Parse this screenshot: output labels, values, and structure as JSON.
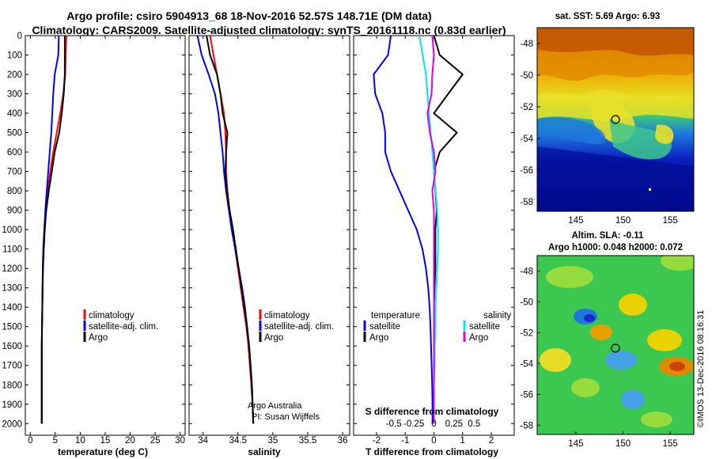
{
  "header": {
    "line1": "Argo profile: csiro 5904913_68 18-Nov-2016 52.57S 148.71E (DM data)",
    "line2": "Climatology: CARS2009. Satellite-adjusted climatology: synTS_20161118.nc (0.83d earlier)"
  },
  "colors": {
    "climatology": "#ff0000",
    "satellite": "#0000ff",
    "argo": "#000000",
    "satellite_salinity": "#00e5ee",
    "argo_salinity": "#e000e0"
  },
  "depth_ticks": [
    "0",
    "100",
    "200",
    "300",
    "400",
    "500",
    "600",
    "700",
    "800",
    "900",
    "1000",
    "1100",
    "1200",
    "1300",
    "1400",
    "1500",
    "1600",
    "1700",
    "1800",
    "1900",
    "2000"
  ],
  "panels": {
    "temperature": {
      "xlabel": "temperature (deg C)",
      "xticks": [
        "0",
        "5",
        "10",
        "15",
        "20",
        "25",
        "30"
      ],
      "legend": [
        "climatology",
        "satellite-adj. clim.",
        "Argo"
      ]
    },
    "salinity": {
      "xlabel": "salinity",
      "xticks": [
        "34",
        "34.5",
        "35",
        "35.5",
        "36"
      ],
      "legend": [
        "climatology",
        "satellite-adj. clim.",
        "Argo"
      ],
      "credit1": "Argo Australia",
      "credit2": "PI: Susan Wijffels"
    },
    "difference": {
      "xlabel": "T difference from climatology",
      "xticks": [
        "-2",
        "-1",
        "0",
        "1",
        "2"
      ],
      "sxlabel": "S difference from climatology",
      "sxticks": [
        "-0.5",
        "-0.25",
        "0",
        "0.25",
        "0.5"
      ],
      "legend_t_head": "temperature",
      "legend_s_head": "salinity",
      "legend_t": [
        "satellite",
        "Argo"
      ],
      "legend_s": [
        "satellite",
        "Argo"
      ]
    }
  },
  "maps": {
    "sst": {
      "title": "sat. SST: 5.69 Argo: 6.93",
      "yticks": [
        "-48",
        "-50",
        "-52",
        "-54",
        "-56",
        "-58"
      ],
      "xticks": [
        "145",
        "150",
        "155"
      ]
    },
    "sla": {
      "title1": "Altim. SLA: -0.11",
      "title2": "Argo h1000: 0.048 h2000: 0.072",
      "yticks": [
        "-48",
        "-50",
        "-52",
        "-54",
        "-56",
        "-58"
      ],
      "xticks": [
        "145",
        "150",
        "155"
      ],
      "stamp": "©IMOS 13-Dec-2016 08:16:31"
    }
  },
  "chart_data": [
    {
      "type": "line",
      "title": "",
      "xlabel": "temperature (deg C)",
      "ylabel": "",
      "xlim": [
        -1,
        31
      ],
      "ylim": [
        2060,
        0
      ],
      "series": [
        {
          "name": "climatology",
          "x": [
            7.2,
            7.1,
            7.0,
            6.6,
            6.0,
            5.3,
            4.6,
            4.0,
            3.5,
            3.1,
            2.8,
            2.6,
            2.5,
            2.45,
            2.4,
            2.35,
            2.3,
            2.3,
            2.3,
            2.3,
            2.3
          ],
          "y": [
            0,
            100,
            200,
            300,
            400,
            500,
            600,
            700,
            800,
            900,
            1000,
            1100,
            1200,
            1300,
            1400,
            1500,
            1600,
            1700,
            1800,
            1900,
            2000
          ]
        },
        {
          "name": "satellite-adj. clim.",
          "x": [
            5.7,
            5.6,
            4.9,
            4.6,
            4.4,
            4.2,
            3.9,
            3.6,
            3.3,
            3.0,
            2.8,
            2.6,
            2.5,
            2.45,
            2.4,
            2.35,
            2.3,
            2.3,
            2.3,
            2.3,
            2.3
          ],
          "y": [
            0,
            100,
            200,
            300,
            400,
            500,
            600,
            700,
            800,
            900,
            1000,
            1100,
            1200,
            1300,
            1400,
            1500,
            1600,
            1700,
            1800,
            1900,
            2000
          ]
        },
        {
          "name": "Argo",
          "x": [
            6.9,
            6.9,
            6.9,
            6.7,
            6.3,
            5.8,
            4.9,
            4.3,
            3.7,
            3.2,
            2.9,
            2.7,
            2.55,
            2.45,
            2.4,
            2.35,
            2.3,
            2.3,
            2.3,
            2.3,
            2.3
          ],
          "y": [
            0,
            100,
            200,
            300,
            400,
            500,
            600,
            700,
            800,
            900,
            1000,
            1100,
            1200,
            1300,
            1400,
            1500,
            1600,
            1700,
            1800,
            1900,
            2000
          ]
        }
      ]
    },
    {
      "type": "line",
      "title": "",
      "xlabel": "salinity",
      "ylabel": "",
      "xlim": [
        33.8,
        36.1
      ],
      "ylim": [
        2060,
        0
      ],
      "series": [
        {
          "name": "climatology",
          "x": [
            34.1,
            34.15,
            34.2,
            34.25,
            34.3,
            34.32,
            34.33,
            34.33,
            34.35,
            34.38,
            34.42,
            34.46,
            34.5,
            34.54,
            34.58,
            34.62,
            34.65,
            34.67,
            34.69,
            34.71,
            34.72
          ],
          "y": [
            0,
            100,
            200,
            300,
            400,
            500,
            600,
            700,
            800,
            900,
            1000,
            1100,
            1200,
            1300,
            1400,
            1500,
            1600,
            1700,
            1800,
            1900,
            2000
          ]
        },
        {
          "name": "satellite-adj. clim.",
          "x": [
            33.92,
            33.98,
            34.08,
            34.17,
            34.22,
            34.25,
            34.28,
            34.3,
            34.33,
            34.37,
            34.41,
            34.46,
            34.51,
            34.56,
            34.6,
            34.63,
            34.66,
            34.68,
            34.7,
            34.71,
            34.72
          ],
          "y": [
            0,
            100,
            200,
            300,
            400,
            500,
            600,
            700,
            800,
            900,
            1000,
            1100,
            1200,
            1300,
            1400,
            1500,
            1600,
            1700,
            1800,
            1900,
            2000
          ]
        },
        {
          "name": "Argo",
          "x": [
            34.05,
            34.1,
            34.2,
            34.25,
            34.28,
            34.35,
            34.33,
            34.32,
            34.34,
            34.38,
            34.43,
            34.47,
            34.51,
            34.55,
            34.59,
            34.63,
            34.66,
            34.68,
            34.7,
            34.71,
            34.72
          ],
          "y": [
            0,
            100,
            200,
            300,
            400,
            500,
            600,
            700,
            800,
            900,
            1000,
            1100,
            1200,
            1300,
            1400,
            1500,
            1600,
            1700,
            1800,
            1900,
            2000
          ]
        }
      ]
    },
    {
      "type": "line",
      "title": "",
      "xlabel": "T difference from climatology",
      "ylabel": "",
      "xlim": [
        -2.8,
        2.8
      ],
      "ylim": [
        2060,
        0
      ],
      "series": [
        {
          "name": "temperature satellite",
          "x": [
            -1.5,
            -1.6,
            -2.1,
            -2.05,
            -1.8,
            -1.7,
            -1.7,
            -1.5,
            -1.2,
            -0.9,
            -0.6,
            -0.4,
            -0.28,
            -0.2,
            -0.15,
            -0.12,
            -0.1,
            -0.08,
            -0.06,
            -0.05,
            -0.05
          ],
          "y": [
            0,
            100,
            200,
            300,
            400,
            500,
            600,
            700,
            800,
            900,
            1000,
            1100,
            1200,
            1300,
            1400,
            1500,
            1600,
            1700,
            1800,
            1900,
            2000
          ]
        },
        {
          "name": "temperature Argo",
          "x": [
            0.0,
            0.2,
            1.0,
            0.5,
            0.0,
            0.8,
            0.2,
            0.0,
            0.05,
            0.1,
            0.05,
            0.05,
            0.05,
            0.02,
            0.0,
            0.0,
            0.0,
            0.0,
            0.0,
            0.0,
            0.0
          ],
          "y": [
            0,
            100,
            200,
            300,
            400,
            500,
            600,
            700,
            800,
            900,
            1000,
            1100,
            1200,
            1300,
            1400,
            1500,
            1600,
            1700,
            1800,
            1900,
            2000
          ]
        },
        {
          "name": "salinity satellite",
          "x": [
            -0.18,
            -0.14,
            -0.1,
            -0.08,
            -0.06,
            -0.04,
            -0.02,
            0.0,
            0.02,
            0.04,
            0.05,
            0.05,
            0.04,
            0.03,
            0.02,
            0.02,
            0.01,
            0.01,
            0.0,
            0.0,
            0.0
          ],
          "y": [
            0,
            100,
            200,
            300,
            400,
            500,
            600,
            700,
            800,
            900,
            1000,
            1100,
            1200,
            1300,
            1400,
            1500,
            1600,
            1700,
            1800,
            1900,
            2000
          ]
        },
        {
          "name": "salinity Argo",
          "x": [
            -0.02,
            0.0,
            -0.02,
            -0.03,
            -0.08,
            -0.05,
            0.0,
            0.02,
            -0.02,
            0.0,
            0.0,
            0.0,
            0.0,
            0.0,
            0.0,
            0.0,
            0.0,
            0.0,
            0.0,
            0.0,
            0.0
          ],
          "y": [
            0,
            100,
            200,
            300,
            400,
            500,
            600,
            700,
            800,
            900,
            1000,
            1100,
            1200,
            1300,
            1400,
            1500,
            1600,
            1700,
            1800,
            1900,
            2000
          ]
        }
      ]
    }
  ]
}
